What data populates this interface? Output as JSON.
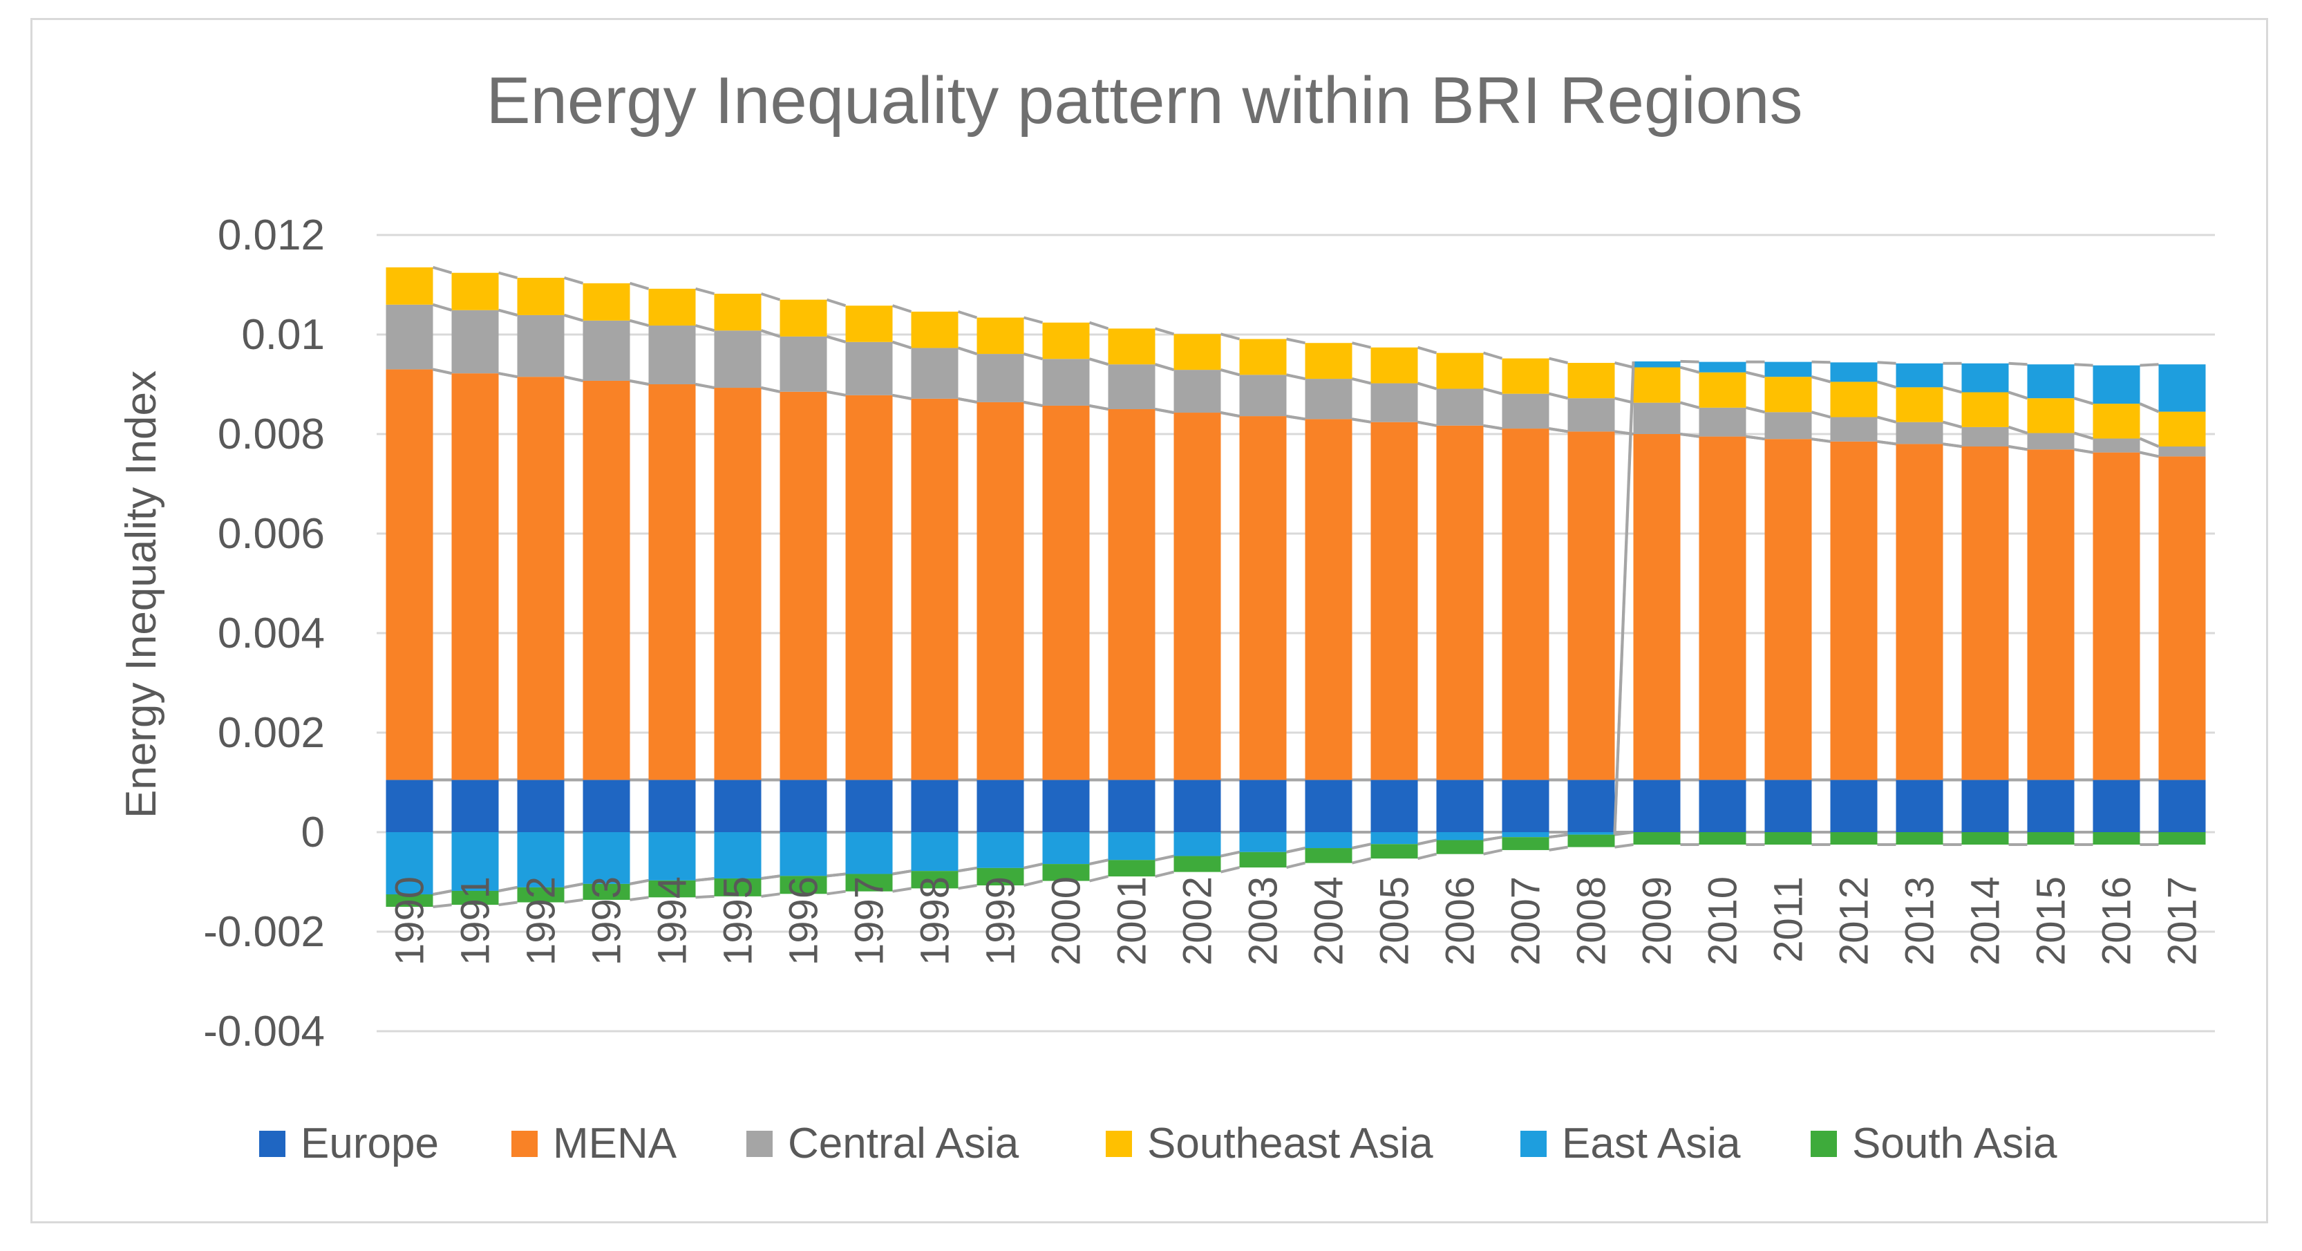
{
  "chart_data": {
    "type": "bar",
    "stacked": true,
    "title": "Energy Inequality pattern within BRI Regions",
    "xlabel": "",
    "ylabel": "Energy Inequality Index",
    "ylim": [
      -0.004,
      0.012
    ],
    "yticks": [
      0.012,
      0.01,
      0.008,
      0.006,
      0.004,
      0.002,
      0,
      -0.002,
      -0.004
    ],
    "ytick_labels": [
      "0.012",
      "0.01",
      "0.008",
      "0.006",
      "0.004",
      "0.002",
      "0",
      "-0.002",
      "-0.004"
    ],
    "grid": true,
    "legend_position": "bottom",
    "series_lines": true,
    "categories": [
      "1990",
      "1991",
      "1992",
      "1993",
      "1994",
      "1995",
      "1996",
      "1997",
      "1998",
      "1999",
      "2000",
      "2001",
      "2002",
      "2003",
      "2004",
      "2005",
      "2006",
      "2007",
      "2008",
      "2009",
      "2010",
      "2011",
      "2012",
      "2013",
      "2014",
      "2015",
      "2016",
      "2017"
    ],
    "series": [
      {
        "name": "Europe",
        "color": "#1f66c2",
        "values": [
          0.00105,
          0.00105,
          0.00105,
          0.00105,
          0.00105,
          0.00105,
          0.00105,
          0.00105,
          0.00105,
          0.00105,
          0.00105,
          0.00105,
          0.00105,
          0.00105,
          0.00105,
          0.00105,
          0.00105,
          0.00105,
          0.00105,
          0.00105,
          0.00105,
          0.00105,
          0.00105,
          0.00105,
          0.00105,
          0.00105,
          0.00105,
          0.00105
        ]
      },
      {
        "name": "MENA",
        "color": "#f98226",
        "values": [
          0.00825,
          0.00817,
          0.0081,
          0.00802,
          0.00795,
          0.00788,
          0.0078,
          0.00773,
          0.00766,
          0.00759,
          0.00752,
          0.00745,
          0.00738,
          0.00731,
          0.00725,
          0.00719,
          0.00712,
          0.00706,
          0.007,
          0.00695,
          0.0069,
          0.00685,
          0.0068,
          0.00675,
          0.0067,
          0.00664,
          0.00658,
          0.0065
        ]
      },
      {
        "name": "Central Asia",
        "color": "#a5a5a5",
        "values": [
          0.0013,
          0.00127,
          0.00124,
          0.00121,
          0.00118,
          0.00115,
          0.00111,
          0.00107,
          0.00102,
          0.00097,
          0.00094,
          0.0009,
          0.00086,
          0.00083,
          0.00081,
          0.00078,
          0.00074,
          0.0007,
          0.00067,
          0.00063,
          0.00058,
          0.00054,
          0.00049,
          0.00044,
          0.00039,
          0.00033,
          0.00028,
          0.0002
        ]
      },
      {
        "name": "Southeast Asia",
        "color": "#ffc000",
        "values": [
          0.00075,
          0.00075,
          0.00075,
          0.00075,
          0.00074,
          0.00074,
          0.00074,
          0.00073,
          0.00073,
          0.00073,
          0.00073,
          0.00072,
          0.00072,
          0.00072,
          0.00072,
          0.00072,
          0.00072,
          0.00071,
          0.00071,
          0.00071,
          0.00071,
          0.00071,
          0.00071,
          0.0007,
          0.0007,
          0.0007,
          0.0007,
          0.0007
        ]
      },
      {
        "name": "East Asia",
        "color": "#1e9ede",
        "values": [
          -0.00125,
          -0.00118,
          -0.00111,
          -0.00104,
          -0.00097,
          -0.00093,
          -0.00088,
          -0.00084,
          -0.00078,
          -0.00072,
          -0.00064,
          -0.00056,
          -0.00048,
          -0.0004,
          -0.00032,
          -0.00024,
          -0.00016,
          -0.0001,
          -5e-05,
          0.00012,
          0.00021,
          0.0003,
          0.00039,
          0.00048,
          0.00058,
          0.00068,
          0.00077,
          0.00095
        ]
      },
      {
        "name": "South Asia",
        "color": "#3eab3b",
        "values": [
          -0.00025,
          -0.00028,
          -0.0003,
          -0.00032,
          -0.00034,
          -0.00036,
          -0.00036,
          -0.00035,
          -0.00035,
          -0.00035,
          -0.00034,
          -0.00033,
          -0.00032,
          -0.00031,
          -0.0003,
          -0.00029,
          -0.00028,
          -0.00026,
          -0.00025,
          -0.00025,
          -0.00025,
          -0.00025,
          -0.00025,
          -0.00025,
          -0.00025,
          -0.00025,
          -0.00025,
          -0.00025
        ]
      }
    ]
  }
}
